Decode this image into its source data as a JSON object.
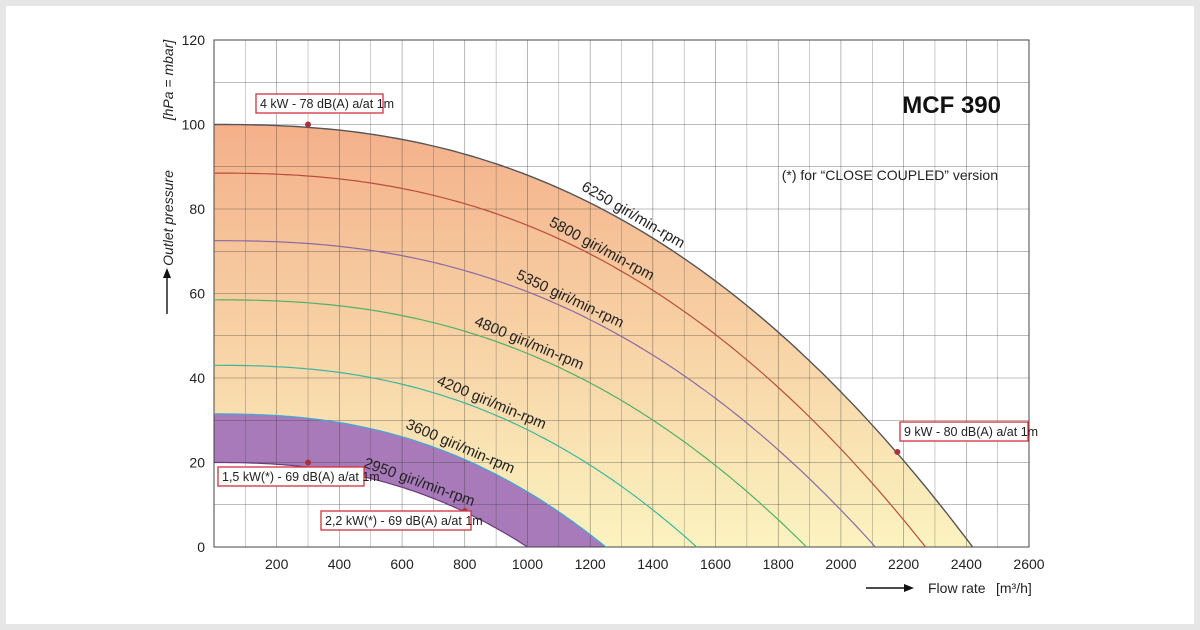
{
  "chart_data": {
    "type": "line",
    "title": "MCF 390",
    "subtitle": "(*) for “CLOSE COUPLED” version",
    "xlabel": "Flow rate",
    "xunit": "[m³/h]",
    "ylabel": "Outlet pressure",
    "yunit": "[hPa = mbar]",
    "xlim": [
      0,
      2600
    ],
    "ylim": [
      0,
      120
    ],
    "x_ticks": [
      200,
      400,
      600,
      800,
      1000,
      1200,
      1400,
      1600,
      1800,
      2000,
      2200,
      2400,
      2600
    ],
    "y_ticks": [
      0,
      20,
      40,
      60,
      80,
      100,
      120
    ],
    "x_origin_tick": "",
    "grid": true,
    "series": [
      {
        "name": "6250 giri/min-rpm",
        "shutoff_pressure": 100,
        "max_flow": 2420,
        "color": "#555555"
      },
      {
        "name": "5800 giri/min-rpm",
        "shutoff_pressure": 88.5,
        "max_flow": 2270,
        "color": "#b94e3e"
      },
      {
        "name": "5350 giri/min-rpm",
        "shutoff_pressure": 72.5,
        "max_flow": 2110,
        "color": "#8a6aa6"
      },
      {
        "name": "4800 giri/min-rpm",
        "shutoff_pressure": 58.5,
        "max_flow": 1890,
        "color": "#52b067"
      },
      {
        "name": "4200 giri/min-rpm",
        "shutoff_pressure": 43,
        "max_flow": 1540,
        "color": "#3db79c"
      },
      {
        "name": "3600 giri/min-rpm",
        "shutoff_pressure": 31.5,
        "max_flow": 1250,
        "color": "#41a8d8"
      },
      {
        "name": "2950 giri/min-rpm",
        "shutoff_pressure": 20,
        "max_flow": 1000,
        "color": "#6b3a7d"
      }
    ],
    "annotations": [
      {
        "text": "4 kW - 78 dB(A) a/at 1m",
        "x": 300,
        "y": 100
      },
      {
        "text": "9 kW - 80 dB(A) a/at 1m",
        "x": 2180,
        "y": 22.5
      },
      {
        "text": "1,5 kW(*) - 69 dB(A) a/at 1m",
        "x": 300,
        "y": 20
      },
      {
        "text": "2,2 kW(*) - 69 dB(A) a/at 1m",
        "x": 800,
        "y": 8.5
      }
    ],
    "colors": {
      "fill_top": "#f4b08a",
      "fill_bottom": "#fbf3c0",
      "close_coupled_band": "#a87ab9",
      "annotation_border": "#d0323c",
      "marker": "#a8323c"
    }
  }
}
